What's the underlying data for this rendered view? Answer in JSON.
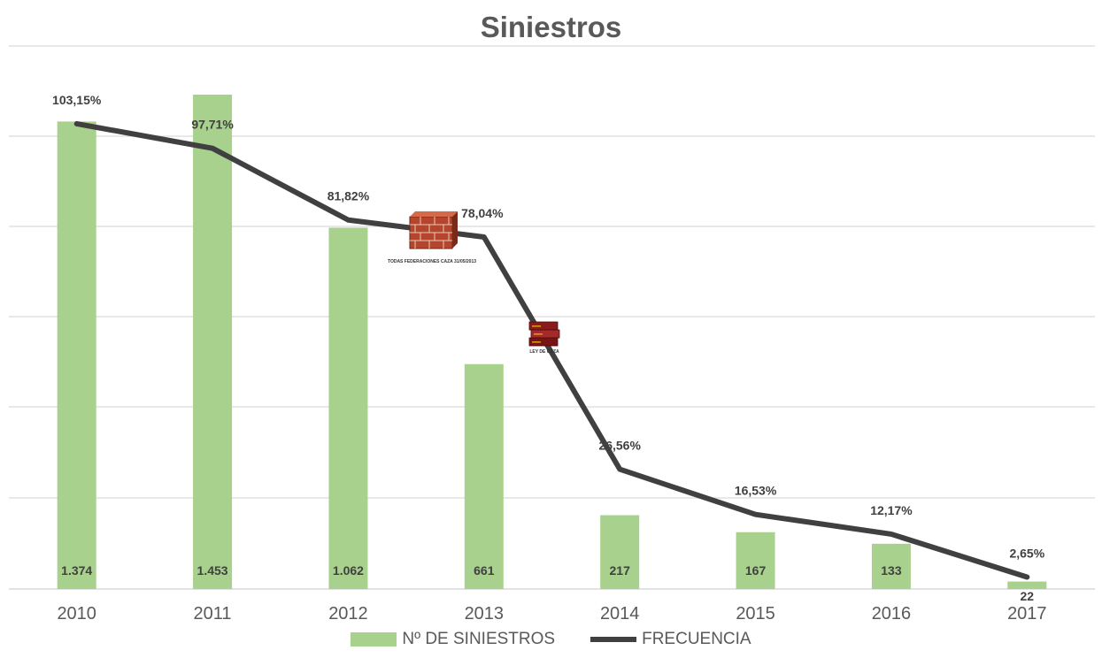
{
  "chart_data": {
    "type": "bar",
    "title": "Siniestros",
    "categories": [
      "2010",
      "2011",
      "2012",
      "2013",
      "2014",
      "2015",
      "2016",
      "2017"
    ],
    "series": [
      {
        "name": "Nº DE SINIESTROS",
        "type": "bar",
        "values": [
          1374,
          1453,
          1062,
          661,
          217,
          167,
          133,
          22
        ],
        "labels": [
          "1.374",
          "1.453",
          "1.062",
          "661",
          "217",
          "167",
          "133",
          "22"
        ],
        "color": "#a9d18e"
      },
      {
        "name": "FRECUENCIA",
        "type": "line",
        "values": [
          103.15,
          97.71,
          81.82,
          78.04,
          26.56,
          16.53,
          12.17,
          2.65
        ],
        "labels": [
          "103,15%",
          "97,71%",
          "81,82%",
          "78,04%",
          "26,56%",
          "16,53%",
          "12,17%",
          "2,65%"
        ],
        "color": "#404040"
      }
    ],
    "bar_axis_range": [
      0,
      1500
    ],
    "line_axis_range": [
      0,
      105
    ],
    "grid": true,
    "legend_position": "bottom",
    "annotations": [
      {
        "icon": "brick-wall-icon",
        "text": "TODAS FEDERACIONES CAZA 31/05/2013"
      },
      {
        "icon": "law-books-icon",
        "text": "LEY DE CAZA"
      }
    ]
  }
}
